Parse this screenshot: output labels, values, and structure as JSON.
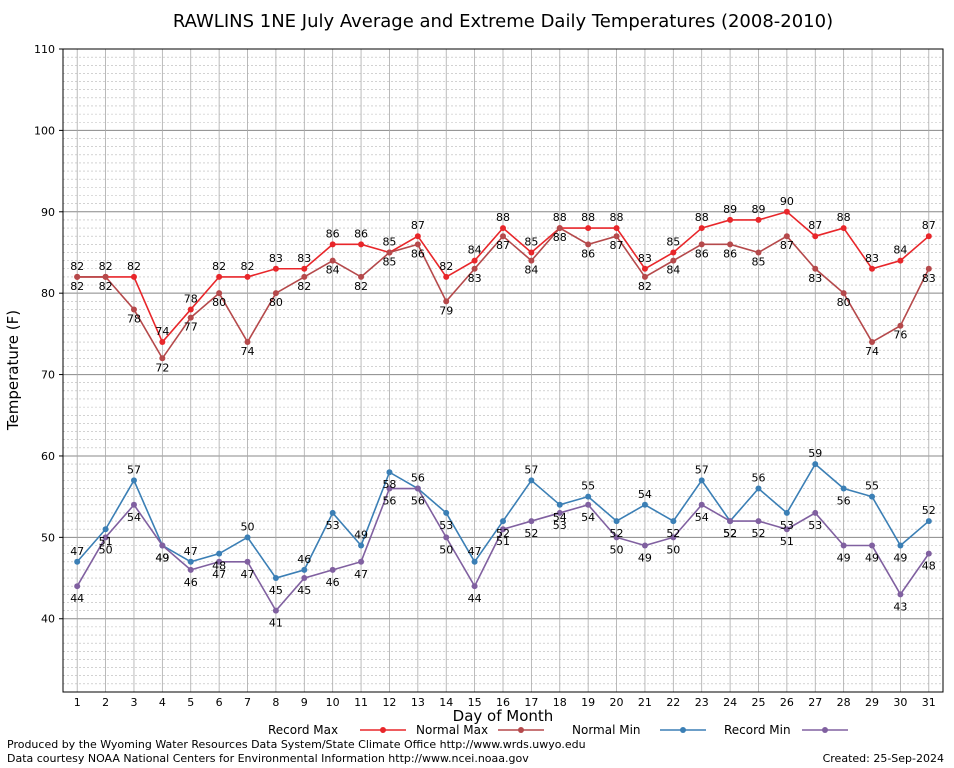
{
  "chart_data": {
    "type": "line",
    "title": "RAWLINS 1NE July Average and Extreme Daily Temperatures (2008-2010)",
    "xlabel": "Day of Month",
    "ylabel": "Temperature (F)",
    "xlim": [
      0.5,
      31.5
    ],
    "ylim": [
      31,
      110
    ],
    "yticks": [
      40,
      50,
      60,
      70,
      80,
      90,
      100,
      110
    ],
    "x": [
      1,
      2,
      3,
      4,
      5,
      6,
      7,
      8,
      9,
      10,
      11,
      12,
      13,
      14,
      15,
      16,
      17,
      18,
      19,
      20,
      21,
      22,
      23,
      24,
      25,
      26,
      27,
      28,
      29,
      30,
      31
    ],
    "grid": true,
    "legend_position": "bottom",
    "series": [
      {
        "name": "Record Max",
        "color": "#e8262a",
        "values": [
          82,
          82,
          82,
          74,
          78,
          82,
          82,
          83,
          83,
          86,
          86,
          85,
          87,
          82,
          84,
          88,
          85,
          88,
          88,
          88,
          83,
          85,
          88,
          89,
          89,
          90,
          87,
          88,
          83,
          84,
          87
        ]
      },
      {
        "name": "Normal Max",
        "color": "#b5494b",
        "values": [
          82,
          82,
          78,
          72,
          77,
          80,
          74,
          80,
          82,
          84,
          82,
          85,
          86,
          79,
          83,
          87,
          84,
          88,
          86,
          87,
          82,
          84,
          86,
          86,
          85,
          87,
          83,
          80,
          74,
          76,
          83
        ]
      },
      {
        "name": "Normal Min",
        "color": "#3b7fb5",
        "values": [
          47,
          51,
          57,
          49,
          47,
          48,
          50,
          45,
          46,
          53,
          49,
          58,
          56,
          53,
          47,
          52,
          57,
          54,
          55,
          52,
          54,
          52,
          57,
          52,
          56,
          53,
          59,
          56,
          55,
          49,
          52
        ]
      },
      {
        "name": "Record Min",
        "color": "#8060a0",
        "values": [
          44,
          50,
          54,
          49,
          46,
          47,
          47,
          41,
          45,
          46,
          47,
          56,
          56,
          50,
          44,
          51,
          52,
          53,
          54,
          50,
          49,
          50,
          54,
          52,
          52,
          51,
          53,
          49,
          49,
          43,
          48
        ]
      }
    ]
  },
  "footer": {
    "produced_by": "Produced by the Wyoming Water Resources Data System/State Climate Office http://www.wrds.uwyo.edu",
    "courtesy": "Data courtesy NOAA National Centers for Environmental Information http://www.ncei.noaa.gov",
    "created": "Created:  25-Sep-2024"
  }
}
